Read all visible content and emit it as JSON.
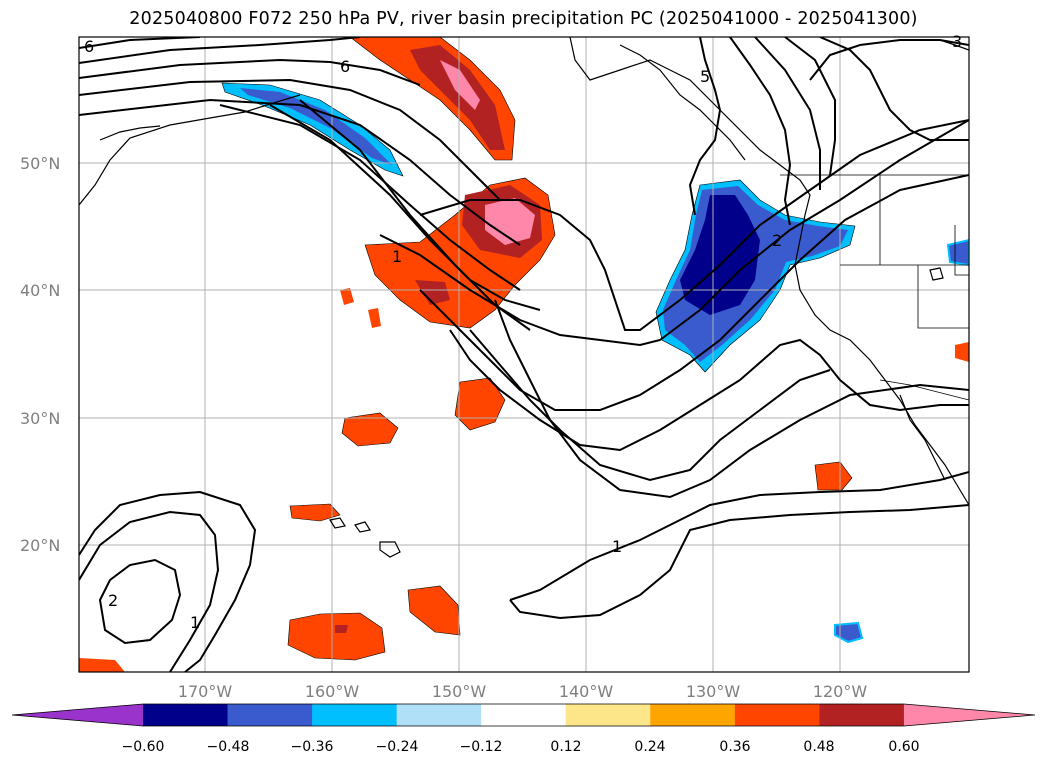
{
  "title": "2025040800 F072 250 hPa PV, river basin precipitation PC (2025041000 - 2025041300)",
  "lat_labels": [
    "50°N",
    "40°N",
    "30°N",
    "20°N"
  ],
  "lon_labels": [
    "170°W",
    "160°W",
    "150°W",
    "140°W",
    "130°W",
    "120°W"
  ],
  "contour_labels": [
    "6",
    "6",
    "1",
    "2",
    "1",
    "2",
    "1",
    "3",
    "5"
  ],
  "colorbar": {
    "tick_labels": [
      "−0.60",
      "−0.48",
      "−0.36",
      "−0.24",
      "−0.12",
      "0.12",
      "0.24",
      "0.36",
      "0.48",
      "0.60"
    ],
    "colors": [
      "#9933cc",
      "#00008b",
      "#3a5bcd",
      "#00bfff",
      "#b0e0f8",
      "#ffffff",
      "#fde68a",
      "#ffa500",
      "#ff4500",
      "#b22222",
      "#ff88aa"
    ]
  },
  "colors": {
    "frame": "#000000",
    "grid": "#b0b0b0",
    "axis_label": "#7f7f7f"
  }
}
